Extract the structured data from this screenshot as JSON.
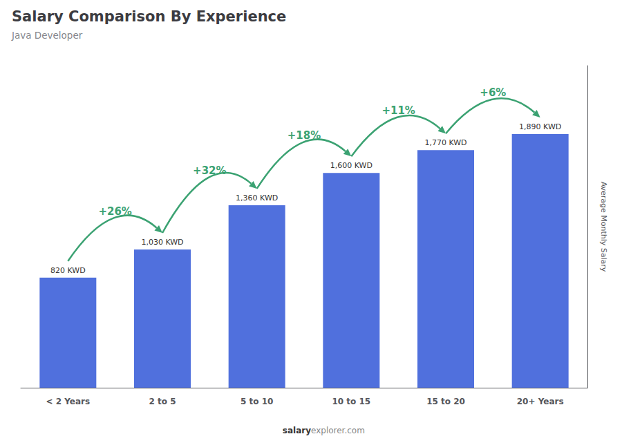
{
  "chart_data": {
    "type": "bar",
    "title": "Salary Comparison By Experience",
    "subtitle": "Java Developer",
    "categories": [
      "< 2 Years",
      "2 to 5",
      "5 to 10",
      "10 to 15",
      "15 to 20",
      "20+ Years"
    ],
    "values": [
      820,
      1030,
      1360,
      1600,
      1770,
      1890
    ],
    "value_labels": [
      "820 KWD",
      "1,030 KWD",
      "1,360 KWD",
      "1,600 KWD",
      "1,770 KWD",
      "1,890 KWD"
    ],
    "data_labels": true,
    "annotations": [
      "+26%",
      "+32%",
      "+18%",
      "+11%",
      "+6%"
    ],
    "ylabel": "Average Monthly Salary",
    "footer": [
      "salary",
      "explorer.com"
    ],
    "ylim": [
      0,
      2400
    ],
    "grid": false,
    "tick_labels": "x"
  }
}
